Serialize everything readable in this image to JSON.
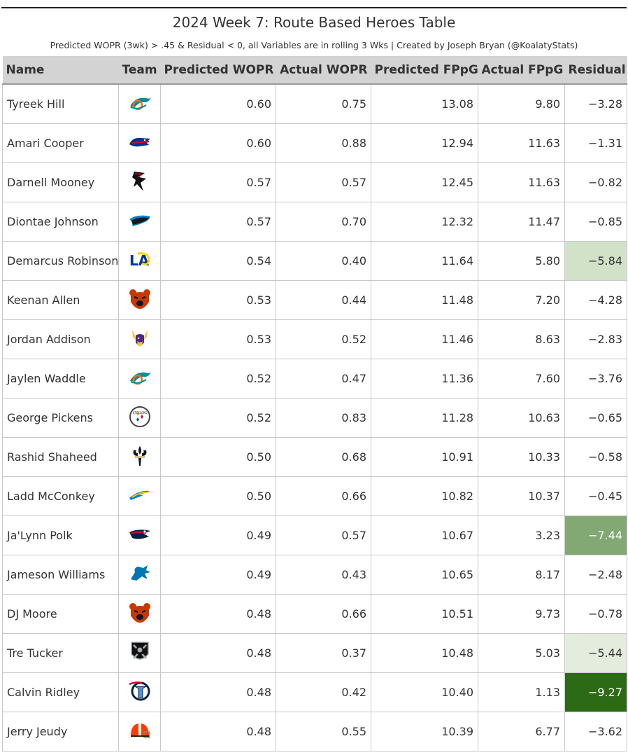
{
  "title": "2024 Week 7: Route Based Heroes Table",
  "subtitle": "Predicted WOPR (3wk) > .45 & Residual < 0, all Variables are in rolling 3 Wks | Created by Joseph Bryan (@KoalatyStats)",
  "chart_data": {
    "type": "table",
    "columns": [
      "Name",
      "Team",
      "Predicted WOPR",
      "Actual WOPR",
      "Predicted FPpG",
      "Actual FPpG",
      "Residual"
    ],
    "rows": [
      {
        "name": "Tyreek Hill",
        "team_icon": "dolphins-logo-icon",
        "pred_wopr": "0.60",
        "act_wopr": "0.75",
        "pred_fppg": "13.08",
        "act_fppg": "9.80",
        "residual": "−3.28",
        "residual_bg": "#ffffff",
        "residual_fg": "#333333"
      },
      {
        "name": "Amari Cooper",
        "team_icon": "bills-logo-icon",
        "pred_wopr": "0.60",
        "act_wopr": "0.88",
        "pred_fppg": "12.94",
        "act_fppg": "11.63",
        "residual": "−1.31",
        "residual_bg": "#ffffff",
        "residual_fg": "#333333"
      },
      {
        "name": "Darnell Mooney",
        "team_icon": "falcons-logo-icon",
        "pred_wopr": "0.57",
        "act_wopr": "0.57",
        "pred_fppg": "12.45",
        "act_fppg": "11.63",
        "residual": "−0.82",
        "residual_bg": "#ffffff",
        "residual_fg": "#333333"
      },
      {
        "name": "Diontae Johnson",
        "team_icon": "panthers-logo-icon",
        "pred_wopr": "0.57",
        "act_wopr": "0.70",
        "pred_fppg": "12.32",
        "act_fppg": "11.47",
        "residual": "−0.85",
        "residual_bg": "#ffffff",
        "residual_fg": "#333333"
      },
      {
        "name": "Demarcus Robinson",
        "team_icon": "rams-logo-icon",
        "pred_wopr": "0.54",
        "act_wopr": "0.40",
        "pred_fppg": "11.64",
        "act_fppg": "5.80",
        "residual": "−5.84",
        "residual_bg": "#d1e2c8",
        "residual_fg": "#333333"
      },
      {
        "name": "Keenan Allen",
        "team_icon": "bears-logo-icon",
        "pred_wopr": "0.53",
        "act_wopr": "0.44",
        "pred_fppg": "11.48",
        "act_fppg": "7.20",
        "residual": "−4.28",
        "residual_bg": "#ffffff",
        "residual_fg": "#333333"
      },
      {
        "name": "Jordan Addison",
        "team_icon": "vikings-logo-icon",
        "pred_wopr": "0.53",
        "act_wopr": "0.52",
        "pred_fppg": "11.46",
        "act_fppg": "8.63",
        "residual": "−2.83",
        "residual_bg": "#ffffff",
        "residual_fg": "#333333"
      },
      {
        "name": "Jaylen Waddle",
        "team_icon": "dolphins-logo-icon",
        "pred_wopr": "0.52",
        "act_wopr": "0.47",
        "pred_fppg": "11.36",
        "act_fppg": "7.60",
        "residual": "−3.76",
        "residual_bg": "#ffffff",
        "residual_fg": "#333333"
      },
      {
        "name": "George Pickens",
        "team_icon": "steelers-logo-icon",
        "pred_wopr": "0.52",
        "act_wopr": "0.83",
        "pred_fppg": "11.28",
        "act_fppg": "10.63",
        "residual": "−0.65",
        "residual_bg": "#ffffff",
        "residual_fg": "#333333"
      },
      {
        "name": "Rashid Shaheed",
        "team_icon": "saints-logo-icon",
        "pred_wopr": "0.50",
        "act_wopr": "0.68",
        "pred_fppg": "10.91",
        "act_fppg": "10.33",
        "residual": "−0.58",
        "residual_bg": "#ffffff",
        "residual_fg": "#333333"
      },
      {
        "name": "Ladd McConkey",
        "team_icon": "chargers-logo-icon",
        "pred_wopr": "0.50",
        "act_wopr": "0.66",
        "pred_fppg": "10.82",
        "act_fppg": "10.37",
        "residual": "−0.45",
        "residual_bg": "#ffffff",
        "residual_fg": "#333333"
      },
      {
        "name": "Ja'Lynn Polk",
        "team_icon": "patriots-logo-icon",
        "pred_wopr": "0.49",
        "act_wopr": "0.57",
        "pred_fppg": "10.67",
        "act_fppg": "3.23",
        "residual": "−7.44",
        "residual_bg": "#82a873",
        "residual_fg": "#ffffff"
      },
      {
        "name": "Jameson Williams",
        "team_icon": "lions-logo-icon",
        "pred_wopr": "0.49",
        "act_wopr": "0.43",
        "pred_fppg": "10.65",
        "act_fppg": "8.17",
        "residual": "−2.48",
        "residual_bg": "#ffffff",
        "residual_fg": "#333333"
      },
      {
        "name": "DJ Moore",
        "team_icon": "bears-logo-icon",
        "pred_wopr": "0.48",
        "act_wopr": "0.66",
        "pred_fppg": "10.51",
        "act_fppg": "9.73",
        "residual": "−0.78",
        "residual_bg": "#ffffff",
        "residual_fg": "#333333"
      },
      {
        "name": "Tre Tucker",
        "team_icon": "raiders-logo-icon",
        "pred_wopr": "0.48",
        "act_wopr": "0.37",
        "pred_fppg": "10.48",
        "act_fppg": "5.03",
        "residual": "−5.44",
        "residual_bg": "#e3ecdd",
        "residual_fg": "#333333"
      },
      {
        "name": "Calvin Ridley",
        "team_icon": "titans-logo-icon",
        "pred_wopr": "0.48",
        "act_wopr": "0.42",
        "pred_fppg": "10.40",
        "act_fppg": "1.13",
        "residual": "−9.27",
        "residual_bg": "#2d6a16",
        "residual_fg": "#ffffff"
      },
      {
        "name": "Jerry Jeudy",
        "team_icon": "browns-logo-icon",
        "pred_wopr": "0.48",
        "act_wopr": "0.55",
        "pred_fppg": "10.39",
        "act_fppg": "6.77",
        "residual": "−3.62",
        "residual_bg": "#ffffff",
        "residual_fg": "#333333"
      }
    ]
  },
  "colors": {
    "header_bg": "#d3d3d3",
    "residual_scale": [
      "#ffffff",
      "#d1e2c8",
      "#82a873",
      "#2d6a16"
    ]
  }
}
